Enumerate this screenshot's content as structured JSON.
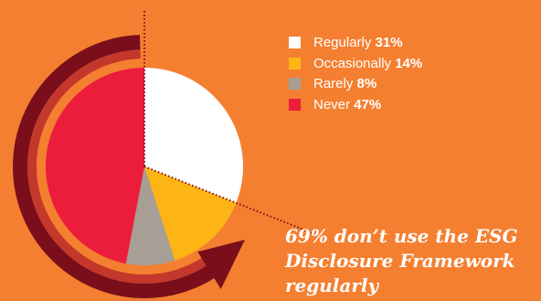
{
  "chart_data": {
    "type": "pie",
    "categories": [
      "Regularly",
      "Occasionally",
      "Rarely",
      "Never"
    ],
    "values": [
      31,
      14,
      8,
      47
    ],
    "unit": "%",
    "value_labels": [
      "31%",
      "14%",
      "8%",
      "47%"
    ],
    "colors": [
      "#FFFFFF",
      "#FDB515",
      "#A79F96",
      "#EC1C3B"
    ],
    "title": "",
    "legend_position": "right",
    "annotation": "69% don’t use the ESG Disclosure Framework regularly",
    "annotation_value": 69
  },
  "style": {
    "background": "#F47F30",
    "arc_dark": "#7A0E1B",
    "arc_light": "#C4382C",
    "leader_line": "#7A0E1B"
  }
}
